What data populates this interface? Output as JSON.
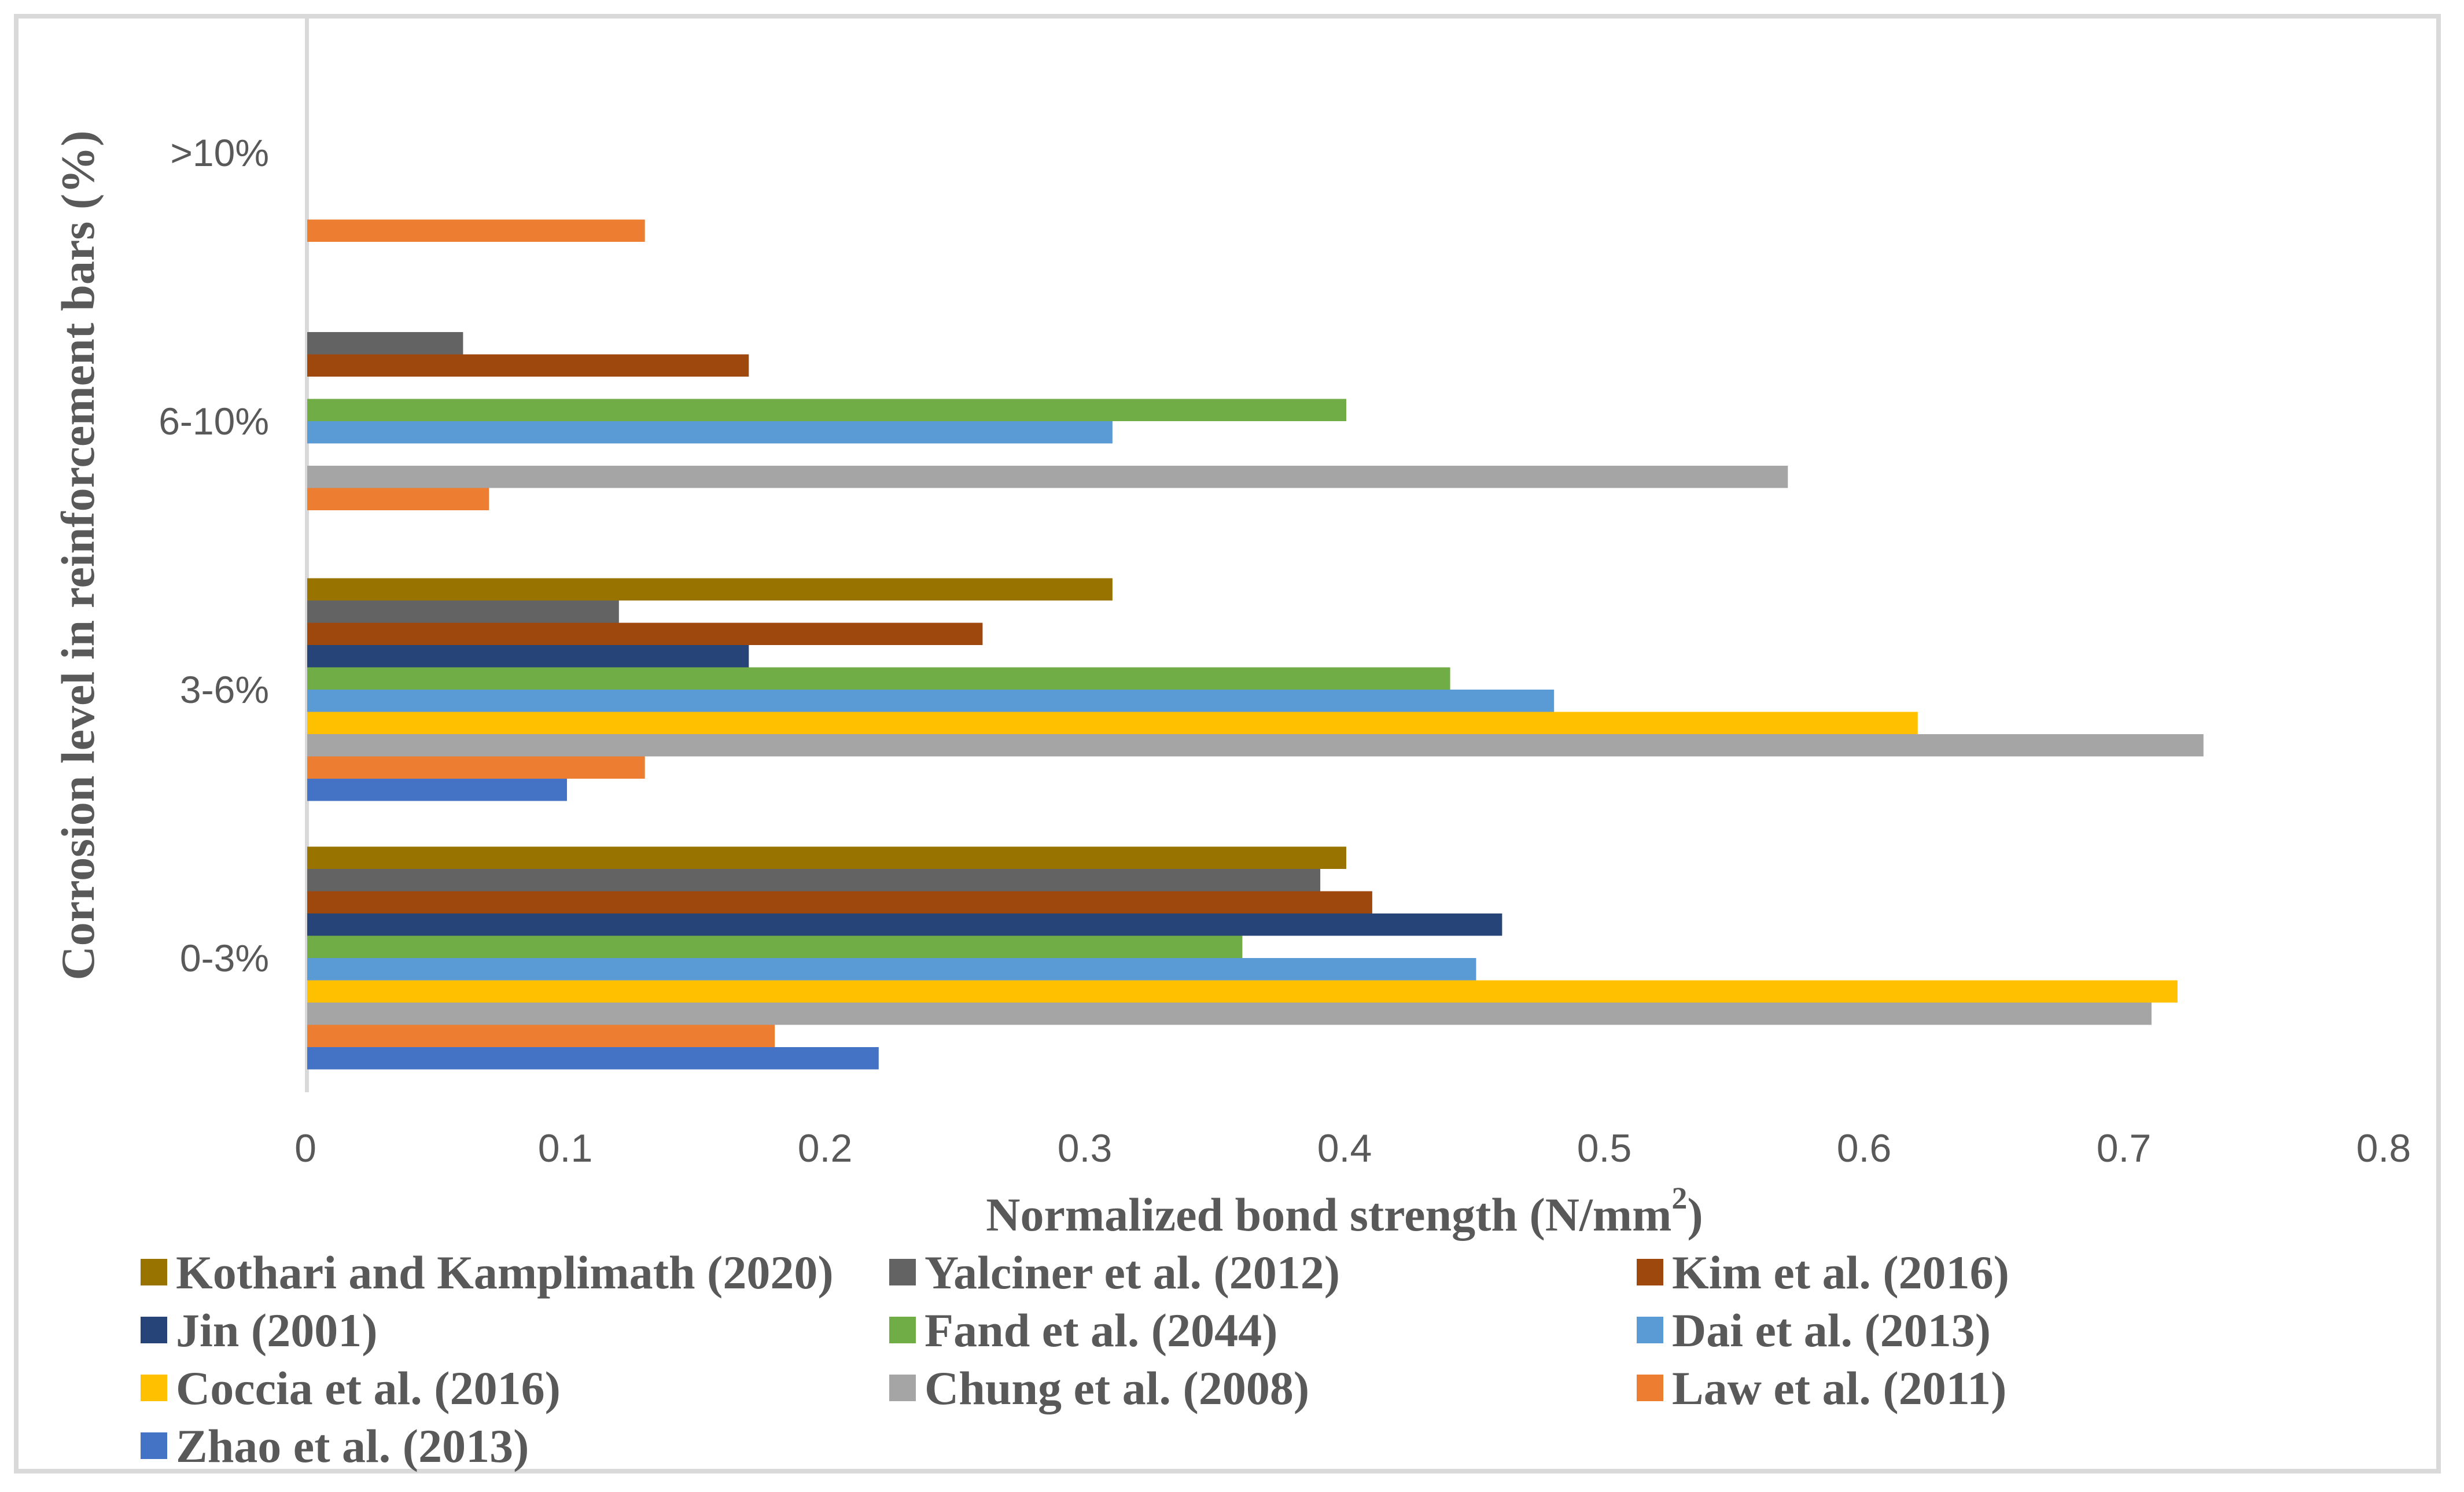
{
  "figure": {
    "background": "#FFFFFF",
    "border_color": "#D9D9D9",
    "axis_line_color": "#D9D9D9",
    "axis_text_color": "#595959"
  },
  "chart_data": {
    "type": "bar",
    "orientation": "horizontal",
    "xlabel": "Normalized bond strength (N/mm²)",
    "xlabel_parts": {
      "pre": "Normalized bond strength (N/mm",
      "sup": "2",
      "post": ")"
    },
    "ylabel": "Corrosion level in reinforcement bars (%)",
    "xlim": [
      0,
      0.8
    ],
    "xticks": [
      0,
      0.1,
      0.2,
      0.3,
      0.4,
      0.5,
      0.6,
      0.7,
      0.8
    ],
    "xtick_labels": [
      "0",
      "0.1",
      "0.2",
      "0.3",
      "0.4",
      "0.5",
      "0.6",
      "0.7",
      "0.8"
    ],
    "categories_top_to_bottom": [
      ">10%",
      "6-10%",
      "3-6%",
      "0-3%"
    ],
    "series": [
      {
        "name": "Kothari and Kamplimath (2020)",
        "color": "#997300",
        "values": [
          0,
          0,
          0.31,
          0.4
        ]
      },
      {
        "name": "Yalciner et al. (2012)",
        "color": "#636363",
        "values": [
          0,
          0.06,
          0.12,
          0.39
        ]
      },
      {
        "name": "Kim et al. (2016)",
        "color": "#9E480E",
        "values": [
          0,
          0.17,
          0.26,
          0.41
        ]
      },
      {
        "name": "Jin (2001)",
        "color": "#264478",
        "values": [
          0,
          0,
          0.17,
          0.46
        ]
      },
      {
        "name": "Fand et al. (2044)",
        "color": "#70AD47",
        "values": [
          0,
          0.4,
          0.44,
          0.36
        ]
      },
      {
        "name": "Dai et al. (2013)",
        "color": "#5B9BD5",
        "values": [
          0,
          0.31,
          0.48,
          0.45
        ]
      },
      {
        "name": "Coccia et al. (2016)",
        "color": "#FFC000",
        "values": [
          0,
          0,
          0.62,
          0.72
        ]
      },
      {
        "name": "Chung et al. (2008)",
        "color": "#A5A5A5",
        "values": [
          0,
          0.57,
          0.73,
          0.71
        ]
      },
      {
        "name": "Law et al. (2011)",
        "color": "#ED7D31",
        "values": [
          0.13,
          0.07,
          0.13,
          0.18
        ]
      },
      {
        "name": "Zhao et al. (2013)",
        "color": "#4472C4",
        "values": [
          0,
          0,
          0.1,
          0.22
        ]
      }
    ],
    "legend_position": "bottom",
    "legend_columns": 3,
    "grid": false
  }
}
